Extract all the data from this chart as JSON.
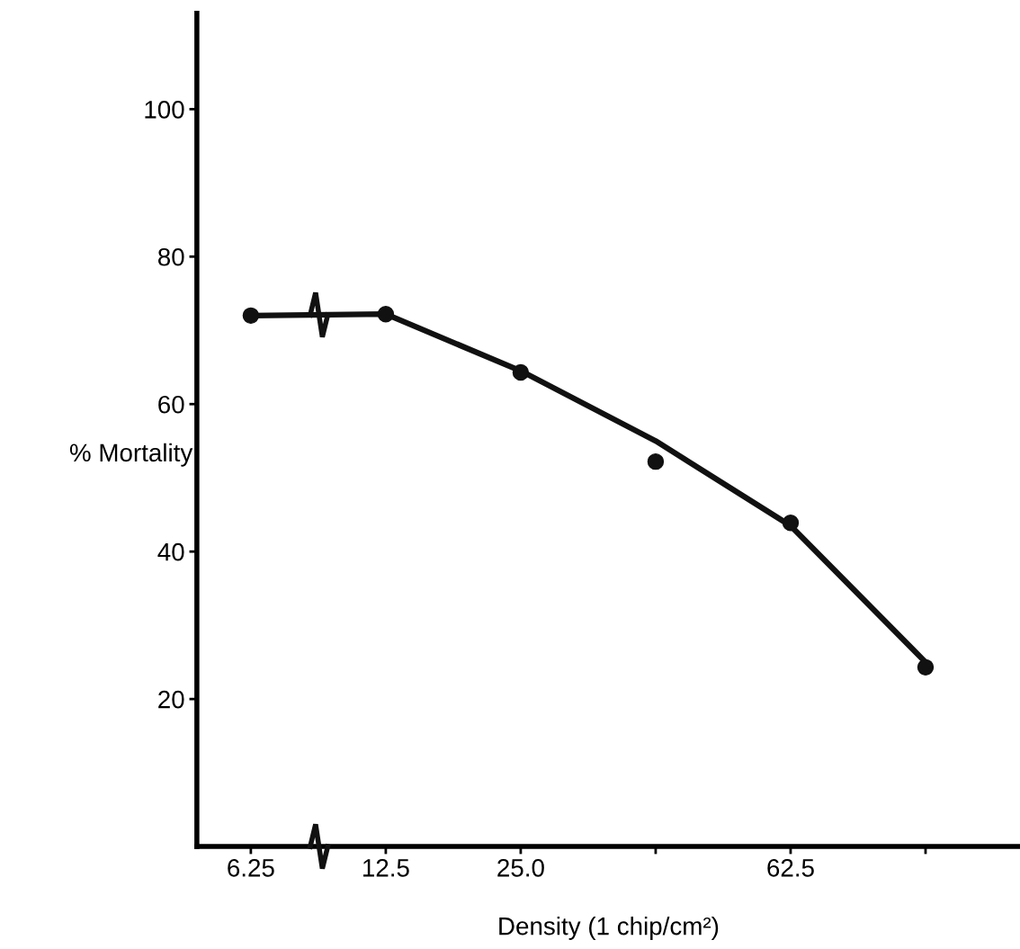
{
  "chart_data": {
    "type": "scatter",
    "xlabel": "Density (1 chip/cm²)",
    "ylabel": "% Mortality",
    "categories": [
      "6.25",
      "12.5",
      "25.0",
      null,
      "62.5",
      null
    ],
    "ylim": [
      0,
      113
    ],
    "yticks": [
      20,
      40,
      60,
      80,
      100
    ],
    "grid": false,
    "legend": false,
    "series": [
      {
        "color": "#111111",
        "marker": "circle",
        "values": [
          72,
          72.2,
          64.3,
          52.2,
          43.9,
          24.3
        ]
      },
      {
        "type": "line",
        "color": "#111111",
        "marker": "none",
        "line_style": "solid",
        "values": [
          72,
          72.2,
          64.5,
          55,
          43.5,
          25
        ]
      }
    ]
  }
}
